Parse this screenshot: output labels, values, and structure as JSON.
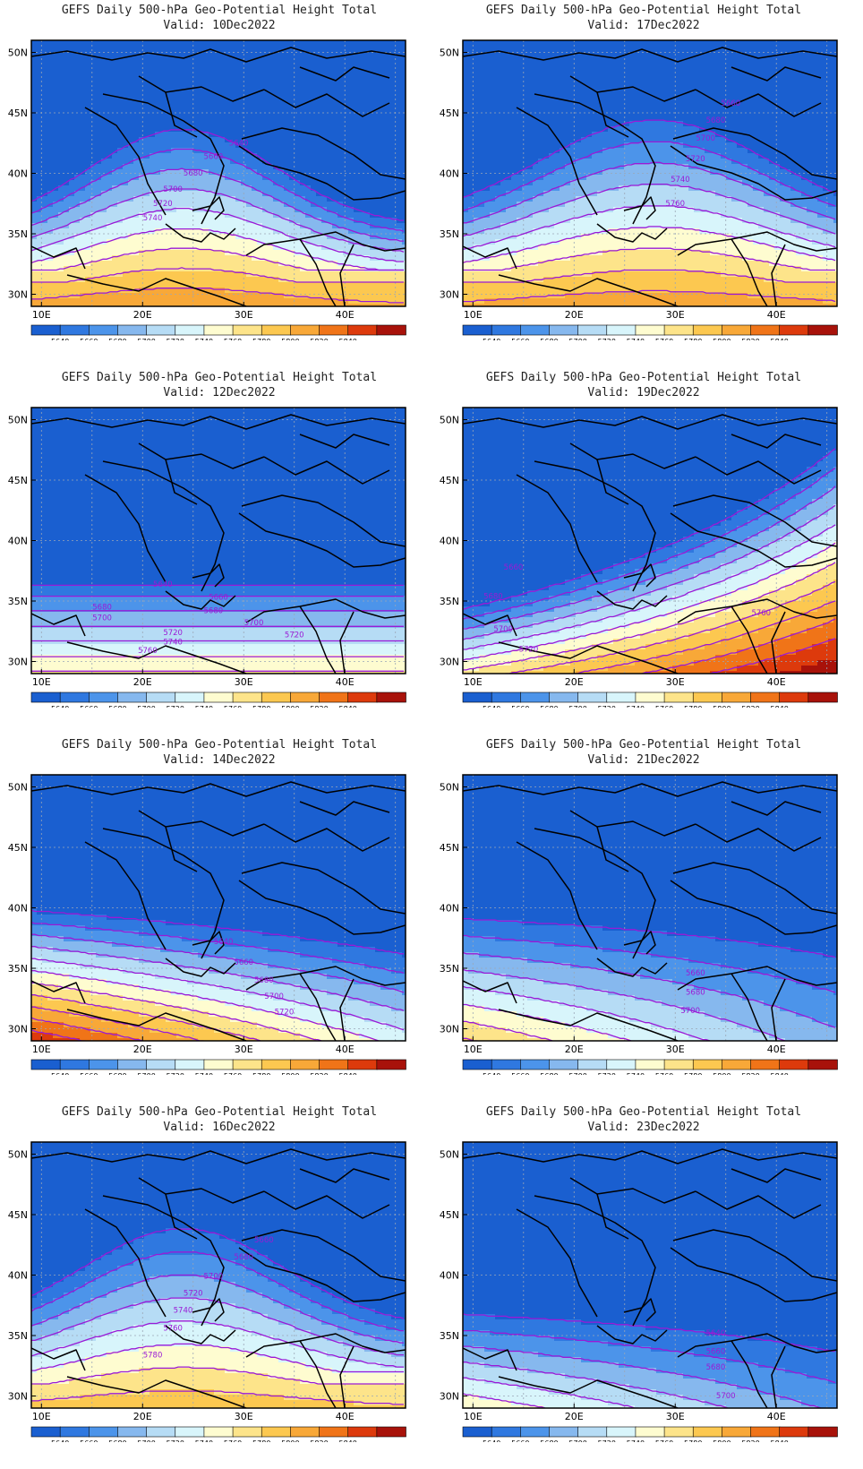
{
  "colors": {
    "levels": [
      "#1a5fd0",
      "#2f78e0",
      "#4c94ea",
      "#86b8ee",
      "#b6dcf5",
      "#d8f5fb",
      "#fefcd0",
      "#fde48a",
      "#fcc850",
      "#f8a838",
      "#f07418",
      "#dd3a0c",
      "#a8120a"
    ],
    "contour": "#9a1ad6",
    "coast": "#000000"
  },
  "colorbar_labels": [
    "5640",
    "5660",
    "5680",
    "5700",
    "5720",
    "5740",
    "5760",
    "5780",
    "5800",
    "5820",
    "5840"
  ],
  "axes": {
    "lat_labels": [
      "50N",
      "45N",
      "40N",
      "35N",
      "30N"
    ],
    "lon_labels": [
      "10E",
      "20E",
      "30E",
      "40E"
    ]
  },
  "panels": [
    {
      "title": "GEFS Daily 500-hPa Geo-Potential Height Total",
      "valid": "Valid: 10Dec2022",
      "shape": "ridge",
      "center": 24,
      "peak": 5830,
      "base": 5620,
      "width": 13,
      "south_flat": 5800,
      "labels": [
        {
          "text": "5640",
          "lon": 29.5,
          "lat": 42.3
        },
        {
          "text": "5660",
          "lon": 27,
          "lat": 41.2
        },
        {
          "text": "5680",
          "lon": 25,
          "lat": 39.8
        },
        {
          "text": "5700",
          "lon": 23,
          "lat": 38.5
        },
        {
          "text": "5720",
          "lon": 22,
          "lat": 37.3
        },
        {
          "text": "5740",
          "lon": 21,
          "lat": 36.1
        }
      ]
    },
    {
      "title": "GEFS Daily 500-hPa Geo-Potential Height Total",
      "valid": "Valid: 17Dec2022",
      "shape": "ridge",
      "center": 28,
      "peak": 5825,
      "base": 5630,
      "width": 16,
      "south_flat": 5800,
      "labels": [
        {
          "text": "5660",
          "lon": 35.5,
          "lat": 45.6
        },
        {
          "text": "5680",
          "lon": 34,
          "lat": 44.2
        },
        {
          "text": "5700",
          "lon": 33,
          "lat": 42.7
        },
        {
          "text": "5720",
          "lon": 32,
          "lat": 41.0
        },
        {
          "text": "5740",
          "lon": 30.5,
          "lat": 39.3
        },
        {
          "text": "5760",
          "lon": 30,
          "lat": 37.3
        }
      ]
    },
    {
      "title": "GEFS Daily 500-hPa Geo-Potential Height Total",
      "valid": "Valid: 12Dec2022",
      "shape": "zonal",
      "a": 5642,
      "b": 0,
      "c": -16,
      "d": 1.5,
      "labels": [
        {
          "text": "5640",
          "lon": 22,
          "lat": 36.2
        },
        {
          "text": "5660",
          "lon": 27.5,
          "lat": 35.1
        },
        {
          "text": "5680",
          "lon": 16,
          "lat": 34.3
        },
        {
          "text": "5680",
          "lon": 27,
          "lat": 34.0
        },
        {
          "text": "5700",
          "lon": 16,
          "lat": 33.4
        },
        {
          "text": "5700",
          "lon": 31,
          "lat": 33.0
        },
        {
          "text": "5720",
          "lon": 23,
          "lat": 32.2
        },
        {
          "text": "5720",
          "lon": 35,
          "lat": 32.0
        },
        {
          "text": "5740",
          "lon": 23,
          "lat": 31.4
        },
        {
          "text": "5760",
          "lon": 20.5,
          "lat": 30.7
        }
      ]
    },
    {
      "title": "GEFS Daily 500-hPa Geo-Potential Height Total",
      "valid": "Valid: 19Dec2022",
      "shape": "tilt",
      "a": 5700,
      "b": 4.8,
      "c": -19,
      "d": 0.03,
      "labels": [
        {
          "text": "5660",
          "lon": 14,
          "lat": 37.6
        },
        {
          "text": "5680",
          "lon": 12,
          "lat": 35.2
        },
        {
          "text": "5700",
          "lon": 13,
          "lat": 32.5
        },
        {
          "text": "5720",
          "lon": 15.5,
          "lat": 30.8
        },
        {
          "text": "5760",
          "lon": 38.5,
          "lat": 33.8
        }
      ]
    },
    {
      "title": "GEFS Daily 500-hPa Geo-Potential Height Total",
      "valid": "Valid: 14Dec2022",
      "shape": "tilt",
      "a": 5700,
      "b": -2.2,
      "c": -17,
      "d": 0.02,
      "labels": [
        {
          "text": "5640",
          "lon": 28,
          "lat": 37.0
        },
        {
          "text": "5660",
          "lon": 30,
          "lat": 35.3
        },
        {
          "text": "5680",
          "lon": 32,
          "lat": 33.8
        },
        {
          "text": "5700",
          "lon": 33,
          "lat": 32.5
        },
        {
          "text": "5720",
          "lon": 34,
          "lat": 31.2
        }
      ]
    },
    {
      "title": "GEFS Daily 500-hPa Geo-Potential Height Total",
      "valid": "Valid: 21Dec2022",
      "shape": "tilt",
      "a": 5675,
      "b": -1.4,
      "c": -11,
      "d": 0.02,
      "labels": [
        {
          "text": "5660",
          "lon": 32,
          "lat": 34.4
        },
        {
          "text": "5680",
          "lon": 32,
          "lat": 32.8
        },
        {
          "text": "5700",
          "lon": 31.5,
          "lat": 31.3
        }
      ]
    },
    {
      "title": "GEFS Daily 500-hPa Geo-Potential Height Total",
      "valid": "Valid: 16Dec2022",
      "shape": "ridge",
      "center": 24,
      "peak": 5805,
      "base": 5625,
      "width": 14,
      "south_flat": 5780,
      "labels": [
        {
          "text": "5660",
          "lon": 32,
          "lat": 42.7
        },
        {
          "text": "5680",
          "lon": 30,
          "lat": 41.3
        },
        {
          "text": "5700",
          "lon": 27,
          "lat": 39.7
        },
        {
          "text": "5720",
          "lon": 25,
          "lat": 38.3
        },
        {
          "text": "5740",
          "lon": 24,
          "lat": 36.9
        },
        {
          "text": "5760",
          "lon": 23,
          "lat": 35.4
        },
        {
          "text": "5780",
          "lon": 21,
          "lat": 33.2
        }
      ]
    },
    {
      "title": "GEFS Daily 500-hPa Geo-Potential Height Total",
      "valid": "Valid: 23Dec2022",
      "shape": "tilt",
      "a": 5650,
      "b": -1.0,
      "c": -12,
      "d": 0.02,
      "labels": [
        {
          "text": "5640",
          "lon": 34,
          "lat": 35.0
        },
        {
          "text": "5660",
          "lon": 34,
          "lat": 33.5
        },
        {
          "text": "5680",
          "lon": 34,
          "lat": 32.2
        },
        {
          "text": "5700",
          "lon": 35,
          "lat": 29.8
        }
      ]
    }
  ]
}
